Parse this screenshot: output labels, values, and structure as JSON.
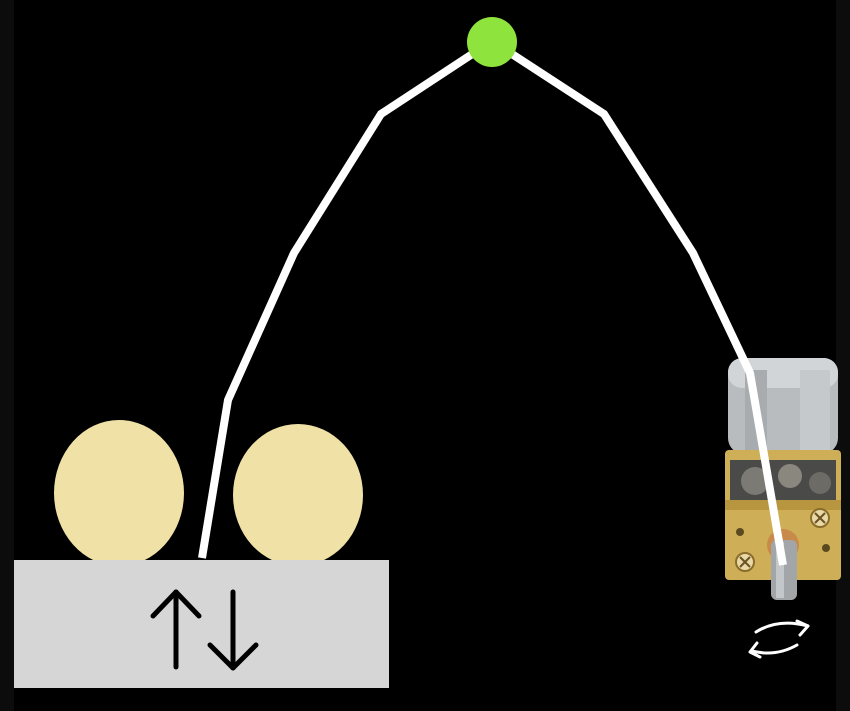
{
  "colors": {
    "background": "#000000",
    "side_strip": "#0c0c0c",
    "string": "#ffffff",
    "pivot": "#8ee43c",
    "eggs": "#f0e1a6",
    "platform": "#d6d6d6",
    "arrows": "#000000",
    "motor_can": "#b9bcbf",
    "motor_gearbox": "#cfae58",
    "motor_shaft": "#a3a6a9"
  },
  "icons": {
    "pivot": "green-dot-icon",
    "platform_motion": "up-down-arrows-icon",
    "motor_rotation": "rotation-arrows-icon"
  },
  "items": {
    "eggs_count": 2,
    "motor": "geared-dc-motor"
  }
}
